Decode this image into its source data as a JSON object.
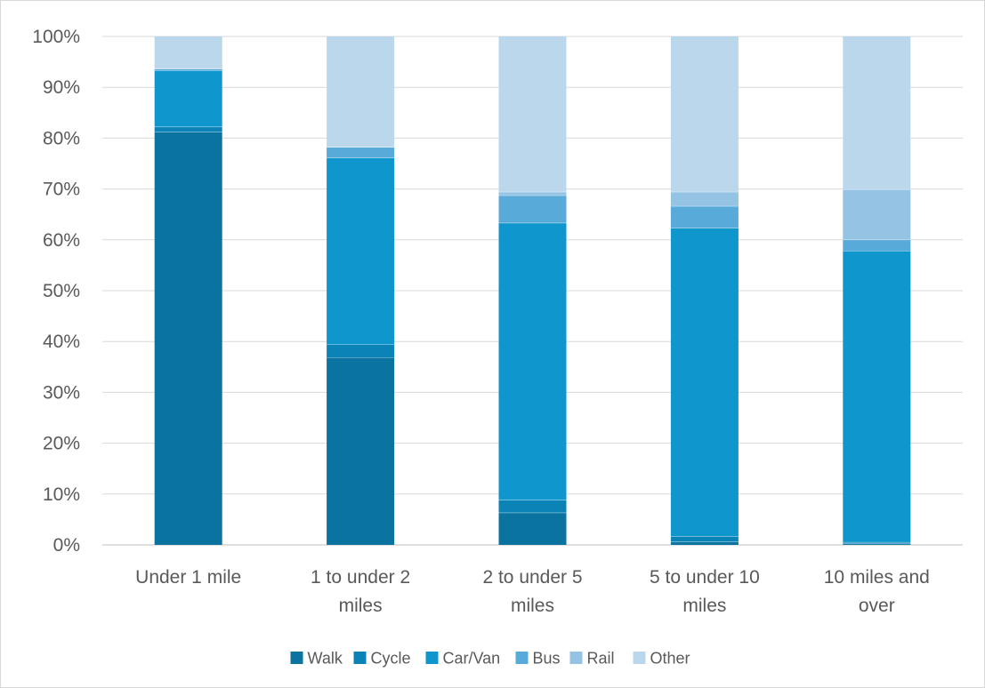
{
  "chart_data": {
    "type": "bar",
    "stacked": true,
    "percent_stacked": true,
    "categories": [
      "Under 1 mile",
      "1 to under 2 miles",
      "2 to under 5 miles",
      "5 to under 10 miles",
      "10 miles and over"
    ],
    "category_lines": [
      [
        "Under 1 mile"
      ],
      [
        "1 to under 2",
        "miles"
      ],
      [
        "2 to under 5",
        "miles"
      ],
      [
        "5 to under 10",
        "miles"
      ],
      [
        "10 miles and",
        "over"
      ]
    ],
    "series": [
      {
        "name": "Walk",
        "color": "#0A739F",
        "values": [
          81.2,
          36.8,
          6.3,
          0.6,
          0.2
        ]
      },
      {
        "name": "Cycle",
        "color": "#0B83B7",
        "values": [
          1.0,
          2.6,
          2.5,
          1.1,
          0.3
        ]
      },
      {
        "name": "Car/Van",
        "color": "#0F96CC",
        "values": [
          11.1,
          36.7,
          54.5,
          60.6,
          57.3
        ]
      },
      {
        "name": "Bus",
        "color": "#58AAD9",
        "values": [
          0.3,
          2.1,
          5.4,
          4.3,
          2.2
        ]
      },
      {
        "name": "Rail",
        "color": "#94C3E4",
        "values": [
          0.1,
          0.1,
          0.7,
          2.8,
          9.9
        ]
      },
      {
        "name": "Other",
        "color": "#BBD7EC",
        "values": [
          6.3,
          21.7,
          30.6,
          30.6,
          30.1
        ]
      }
    ],
    "ylim": [
      0,
      100
    ],
    "yticks": [
      "0%",
      "10%",
      "20%",
      "30%",
      "40%",
      "50%",
      "60%",
      "70%",
      "80%",
      "90%",
      "100%"
    ],
    "title": "",
    "xlabel": "",
    "ylabel": "",
    "grid": true,
    "legend_position": "bottom"
  }
}
